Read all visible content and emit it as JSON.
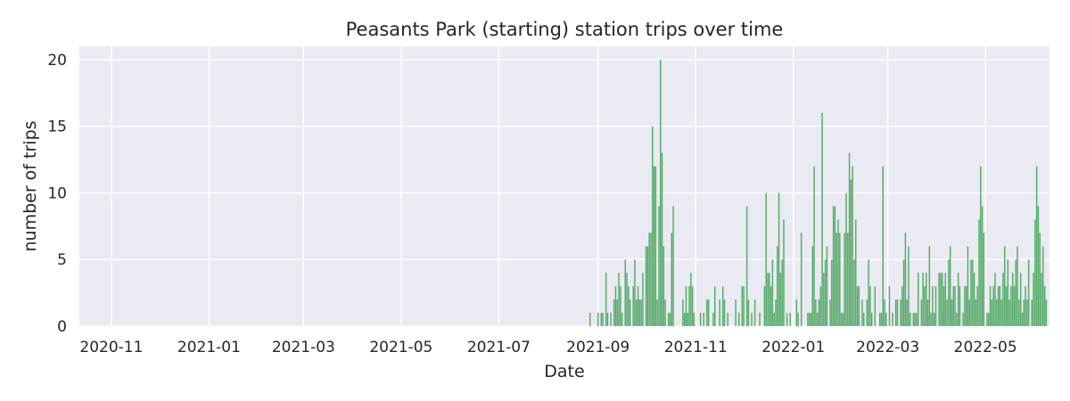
{
  "chart_data": {
    "type": "bar",
    "title": "Peasants Park (starting) station trips over time",
    "xlabel": "Date",
    "ylabel": "number of trips",
    "xlim": [
      "2020-10-12",
      "2022-06-10"
    ],
    "ylim": [
      0,
      21
    ],
    "x_ticks": [
      "2020-11",
      "2021-01",
      "2021-03",
      "2021-05",
      "2021-07",
      "2021-09",
      "2021-11",
      "2022-01",
      "2022-03",
      "2022-05"
    ],
    "y_ticks": [
      0,
      5,
      10,
      15,
      20
    ],
    "grid": true,
    "legend": "none",
    "colors": {
      "bar": "#55a868",
      "background": "#eaeaf2",
      "grid": "#ffffff",
      "text": "#262626"
    },
    "series": [
      {
        "points": [
          [
            "2021-08-27",
            1
          ],
          [
            "2021-09-01",
            1
          ],
          [
            "2021-09-03",
            1
          ],
          [
            "2021-09-04",
            1
          ],
          [
            "2021-09-06",
            4
          ],
          [
            "2021-09-07",
            1
          ],
          [
            "2021-09-09",
            1
          ],
          [
            "2021-09-11",
            2
          ],
          [
            "2021-09-12",
            3
          ],
          [
            "2021-09-13",
            2
          ],
          [
            "2021-09-14",
            4
          ],
          [
            "2021-09-15",
            3
          ],
          [
            "2021-09-16",
            1
          ],
          [
            "2021-09-18",
            5
          ],
          [
            "2021-09-19",
            4
          ],
          [
            "2021-09-20",
            3
          ],
          [
            "2021-09-21",
            2
          ],
          [
            "2021-09-23",
            3
          ],
          [
            "2021-09-24",
            5
          ],
          [
            "2021-09-25",
            2
          ],
          [
            "2021-09-26",
            3
          ],
          [
            "2021-09-27",
            2
          ],
          [
            "2021-09-28",
            2
          ],
          [
            "2021-09-29",
            4
          ],
          [
            "2021-10-01",
            6
          ],
          [
            "2021-10-02",
            6
          ],
          [
            "2021-10-03",
            7
          ],
          [
            "2021-10-04",
            7
          ],
          [
            "2021-10-05",
            15
          ],
          [
            "2021-10-06",
            12
          ],
          [
            "2021-10-07",
            12
          ],
          [
            "2021-10-08",
            2
          ],
          [
            "2021-10-09",
            9
          ],
          [
            "2021-10-10",
            20
          ],
          [
            "2021-10-11",
            13
          ],
          [
            "2021-10-12",
            6
          ],
          [
            "2021-10-13",
            2
          ],
          [
            "2021-10-15",
            1
          ],
          [
            "2021-10-16",
            1
          ],
          [
            "2021-10-17",
            7
          ],
          [
            "2021-10-18",
            9
          ],
          [
            "2021-10-24",
            2
          ],
          [
            "2021-10-25",
            1
          ],
          [
            "2021-10-26",
            3
          ],
          [
            "2021-10-27",
            1
          ],
          [
            "2021-10-28",
            3
          ],
          [
            "2021-10-29",
            4
          ],
          [
            "2021-10-30",
            3
          ],
          [
            "2021-10-31",
            1
          ],
          [
            "2021-11-04",
            1
          ],
          [
            "2021-11-06",
            1
          ],
          [
            "2021-11-08",
            2
          ],
          [
            "2021-11-09",
            2
          ],
          [
            "2021-11-12",
            1
          ],
          [
            "2021-11-13",
            3
          ],
          [
            "2021-11-16",
            2
          ],
          [
            "2021-11-18",
            3
          ],
          [
            "2021-11-19",
            2
          ],
          [
            "2021-11-21",
            1
          ],
          [
            "2021-11-26",
            2
          ],
          [
            "2021-11-28",
            1
          ],
          [
            "2021-11-30",
            3
          ],
          [
            "2021-12-01",
            3
          ],
          [
            "2021-12-03",
            9
          ],
          [
            "2021-12-04",
            2
          ],
          [
            "2021-12-06",
            1
          ],
          [
            "2021-12-08",
            2
          ],
          [
            "2021-12-11",
            1
          ],
          [
            "2021-12-14",
            3
          ],
          [
            "2021-12-15",
            10
          ],
          [
            "2021-12-16",
            4
          ],
          [
            "2021-12-17",
            4
          ],
          [
            "2021-12-18",
            3
          ],
          [
            "2021-12-19",
            5
          ],
          [
            "2021-12-20",
            1
          ],
          [
            "2021-12-21",
            2
          ],
          [
            "2021-12-22",
            6
          ],
          [
            "2021-12-23",
            10
          ],
          [
            "2021-12-24",
            4
          ],
          [
            "2021-12-25",
            5
          ],
          [
            "2021-12-26",
            8
          ],
          [
            "2021-12-28",
            1
          ],
          [
            "2021-12-30",
            1
          ],
          [
            "2022-01-03",
            2
          ],
          [
            "2022-01-04",
            1
          ],
          [
            "2022-01-06",
            7
          ],
          [
            "2022-01-10",
            1
          ],
          [
            "2022-01-11",
            1
          ],
          [
            "2022-01-12",
            1
          ],
          [
            "2022-01-13",
            6
          ],
          [
            "2022-01-14",
            12
          ],
          [
            "2022-01-15",
            2
          ],
          [
            "2022-01-16",
            1
          ],
          [
            "2022-01-17",
            2
          ],
          [
            "2022-01-18",
            3
          ],
          [
            "2022-01-19",
            16
          ],
          [
            "2022-01-20",
            4
          ],
          [
            "2022-01-21",
            5
          ],
          [
            "2022-01-22",
            6
          ],
          [
            "2022-01-24",
            2
          ],
          [
            "2022-01-25",
            5
          ],
          [
            "2022-01-26",
            9
          ],
          [
            "2022-01-27",
            9
          ],
          [
            "2022-01-28",
            7
          ],
          [
            "2022-01-29",
            8
          ],
          [
            "2022-01-30",
            7
          ],
          [
            "2022-01-31",
            1
          ],
          [
            "2022-02-01",
            1
          ],
          [
            "2022-02-02",
            7
          ],
          [
            "2022-02-03",
            10
          ],
          [
            "2022-02-04",
            7
          ],
          [
            "2022-02-05",
            13
          ],
          [
            "2022-02-06",
            11
          ],
          [
            "2022-02-07",
            12
          ],
          [
            "2022-02-08",
            5
          ],
          [
            "2022-02-09",
            8
          ],
          [
            "2022-02-10",
            3
          ],
          [
            "2022-02-11",
            3
          ],
          [
            "2022-02-13",
            2
          ],
          [
            "2022-02-14",
            1
          ],
          [
            "2022-02-16",
            2
          ],
          [
            "2022-02-17",
            5
          ],
          [
            "2022-02-18",
            3
          ],
          [
            "2022-02-19",
            1
          ],
          [
            "2022-02-21",
            3
          ],
          [
            "2022-02-24",
            1
          ],
          [
            "2022-02-25",
            1
          ],
          [
            "2022-02-26",
            12
          ],
          [
            "2022-02-27",
            2
          ],
          [
            "2022-02-28",
            1
          ],
          [
            "2022-03-02",
            3
          ],
          [
            "2022-03-04",
            1
          ],
          [
            "2022-03-06",
            2
          ],
          [
            "2022-03-07",
            2
          ],
          [
            "2022-03-09",
            2
          ],
          [
            "2022-03-10",
            3
          ],
          [
            "2022-03-11",
            5
          ],
          [
            "2022-03-12",
            7
          ],
          [
            "2022-03-13",
            2
          ],
          [
            "2022-03-14",
            6
          ],
          [
            "2022-03-15",
            1
          ],
          [
            "2022-03-17",
            1
          ],
          [
            "2022-03-18",
            1
          ],
          [
            "2022-03-19",
            1
          ],
          [
            "2022-03-20",
            4
          ],
          [
            "2022-03-22",
            2
          ],
          [
            "2022-03-23",
            4
          ],
          [
            "2022-03-24",
            3
          ],
          [
            "2022-03-25",
            4
          ],
          [
            "2022-03-26",
            2
          ],
          [
            "2022-03-27",
            6
          ],
          [
            "2022-03-28",
            1
          ],
          [
            "2022-03-29",
            3
          ],
          [
            "2022-03-30",
            1
          ],
          [
            "2022-03-31",
            3
          ],
          [
            "2022-04-02",
            4
          ],
          [
            "2022-04-03",
            4
          ],
          [
            "2022-04-04",
            4
          ],
          [
            "2022-04-05",
            3
          ],
          [
            "2022-04-06",
            4
          ],
          [
            "2022-04-07",
            2
          ],
          [
            "2022-04-08",
            5
          ],
          [
            "2022-04-09",
            6
          ],
          [
            "2022-04-10",
            2
          ],
          [
            "2022-04-11",
            3
          ],
          [
            "2022-04-12",
            3
          ],
          [
            "2022-04-13",
            1
          ],
          [
            "2022-04-14",
            4
          ],
          [
            "2022-04-15",
            3
          ],
          [
            "2022-04-17",
            1
          ],
          [
            "2022-04-18",
            3
          ],
          [
            "2022-04-19",
            3
          ],
          [
            "2022-04-20",
            6
          ],
          [
            "2022-04-21",
            2
          ],
          [
            "2022-04-22",
            5
          ],
          [
            "2022-04-23",
            5
          ],
          [
            "2022-04-24",
            4
          ],
          [
            "2022-04-25",
            2
          ],
          [
            "2022-04-26",
            3
          ],
          [
            "2022-04-27",
            8
          ],
          [
            "2022-04-28",
            12
          ],
          [
            "2022-04-29",
            9
          ],
          [
            "2022-04-30",
            7
          ],
          [
            "2022-05-02",
            1
          ],
          [
            "2022-05-03",
            1
          ],
          [
            "2022-05-04",
            3
          ],
          [
            "2022-05-05",
            2
          ],
          [
            "2022-05-06",
            3
          ],
          [
            "2022-05-07",
            4
          ],
          [
            "2022-05-08",
            2
          ],
          [
            "2022-05-09",
            3
          ],
          [
            "2022-05-10",
            3
          ],
          [
            "2022-05-11",
            2
          ],
          [
            "2022-05-12",
            4
          ],
          [
            "2022-05-13",
            6
          ],
          [
            "2022-05-14",
            3
          ],
          [
            "2022-05-15",
            5
          ],
          [
            "2022-05-16",
            2
          ],
          [
            "2022-05-17",
            3
          ],
          [
            "2022-05-18",
            4
          ],
          [
            "2022-05-19",
            3
          ],
          [
            "2022-05-20",
            5
          ],
          [
            "2022-05-21",
            6
          ],
          [
            "2022-05-22",
            2
          ],
          [
            "2022-05-23",
            4
          ],
          [
            "2022-05-24",
            1
          ],
          [
            "2022-05-25",
            2
          ],
          [
            "2022-05-26",
            3
          ],
          [
            "2022-05-27",
            2
          ],
          [
            "2022-05-28",
            5
          ],
          [
            "2022-05-30",
            2
          ],
          [
            "2022-05-31",
            4
          ],
          [
            "2022-06-01",
            8
          ],
          [
            "2022-06-02",
            12
          ],
          [
            "2022-06-03",
            9
          ],
          [
            "2022-06-04",
            7
          ],
          [
            "2022-06-05",
            4
          ],
          [
            "2022-06-06",
            6
          ],
          [
            "2022-06-07",
            3
          ],
          [
            "2022-06-08",
            2
          ]
        ]
      }
    ]
  }
}
